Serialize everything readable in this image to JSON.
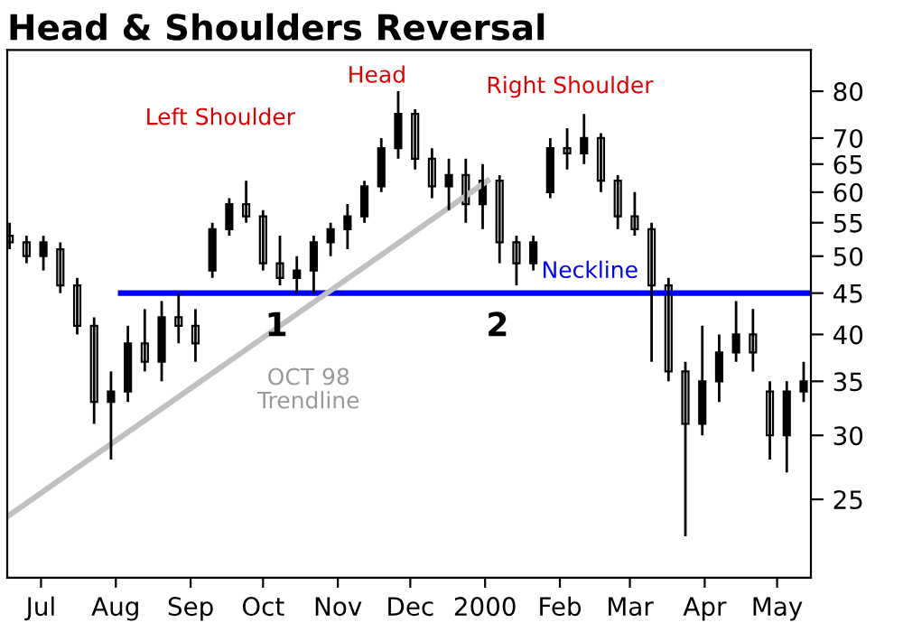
{
  "chart_data": {
    "type": "candlestick",
    "title": "Head & Shoulders Reversal",
    "x": [
      "1999-07-02",
      "1999-07-09",
      "1999-07-16",
      "1999-07-23",
      "1999-07-30",
      "1999-08-06",
      "1999-08-13",
      "1999-08-20",
      "1999-08-27",
      "1999-09-03",
      "1999-09-10",
      "1999-09-17",
      "1999-09-24",
      "1999-10-01",
      "1999-10-08",
      "1999-10-15",
      "1999-10-22",
      "1999-10-29",
      "1999-11-05",
      "1999-11-12",
      "1999-11-19",
      "1999-11-26",
      "1999-12-03",
      "1999-12-10",
      "1999-12-17",
      "1999-12-24",
      "1999-12-31",
      "2000-01-07",
      "2000-01-14",
      "2000-01-21",
      "2000-01-28",
      "2000-02-04",
      "2000-02-11",
      "2000-02-18",
      "2000-02-25",
      "2000-03-03",
      "2000-03-10",
      "2000-03-17",
      "2000-03-24",
      "2000-03-31",
      "2000-04-07",
      "2000-04-14",
      "2000-04-21",
      "2000-04-28",
      "2000-05-05",
      "2000-05-12",
      "2000-05-19",
      "2000-05-26"
    ],
    "ohlc": [
      [
        53,
        55,
        51,
        52
      ],
      [
        52,
        53,
        49,
        50
      ],
      [
        50,
        53,
        48,
        52
      ],
      [
        51,
        52,
        45,
        46
      ],
      [
        46,
        47,
        40,
        41
      ],
      [
        41,
        42,
        31,
        33
      ],
      [
        33,
        36,
        28,
        34
      ],
      [
        34,
        41,
        33,
        39
      ],
      [
        39,
        43,
        36,
        37
      ],
      [
        37,
        44,
        35,
        42
      ],
      [
        42,
        45,
        39,
        41
      ],
      [
        41,
        43,
        37,
        39
      ],
      [
        48,
        55,
        47,
        54
      ],
      [
        54,
        59,
        53,
        58
      ],
      [
        58,
        62,
        55,
        56
      ],
      [
        56,
        57,
        48,
        49
      ],
      [
        49,
        53,
        46,
        47
      ],
      [
        47,
        50,
        45,
        48
      ],
      [
        48,
        53,
        45,
        52
      ],
      [
        52,
        55,
        50,
        54
      ],
      [
        54,
        58,
        51,
        56
      ],
      [
        56,
        62,
        55,
        61
      ],
      [
        61,
        70,
        60,
        68
      ],
      [
        68,
        80,
        66,
        75
      ],
      [
        75,
        76,
        64,
        66
      ],
      [
        66,
        68,
        59,
        61
      ],
      [
        61,
        66,
        57,
        63
      ],
      [
        63,
        66,
        55,
        58
      ],
      [
        58,
        65,
        54,
        62
      ],
      [
        62,
        63,
        49,
        52
      ],
      [
        52,
        53,
        46,
        49
      ],
      [
        49,
        53,
        48,
        52
      ],
      [
        60,
        70,
        59,
        68
      ],
      [
        68,
        72,
        64,
        67
      ],
      [
        67,
        75,
        65,
        70
      ],
      [
        70,
        71,
        60,
        62
      ],
      [
        62,
        63,
        54,
        56
      ],
      [
        56,
        60,
        53,
        54
      ],
      [
        54,
        55,
        37,
        46
      ],
      [
        46,
        47,
        35,
        36
      ],
      [
        36,
        37,
        22.5,
        31
      ],
      [
        31,
        41,
        30,
        35
      ],
      [
        35,
        40,
        33,
        38
      ],
      [
        38,
        44,
        37,
        40
      ],
      [
        40,
        43,
        36,
        38
      ],
      [
        34,
        35,
        28,
        30
      ],
      [
        30,
        35,
        27,
        34
      ],
      [
        34,
        37,
        33,
        35
      ]
    ],
    "color": "#000000",
    "series": [
      {
        "type": "line",
        "color": "#0000ff",
        "x": [
          "1999-08-17",
          "2000-05-29"
        ],
        "values": [
          45,
          45
        ]
      },
      {
        "type": "line",
        "color": "#c0c0c0",
        "x": [
          "1999-07-01",
          "2000-01-16"
        ],
        "values": [
          23.8,
          62
        ]
      }
    ],
    "log": true,
    "ylim": [
      20,
      90
    ],
    "yticks": [
      25,
      30,
      35,
      40,
      45,
      50,
      55,
      60,
      65,
      70,
      80
    ],
    "xlim": [
      "1999-07-01",
      "2000-05-29"
    ],
    "xticks": [
      {
        "value": "1999-07-15",
        "label": "Jul"
      },
      {
        "value": "1999-08-15",
        "label": "Aug"
      },
      {
        "value": "1999-09-15",
        "label": "Sep"
      },
      {
        "value": "1999-10-15",
        "label": "Oct"
      },
      {
        "value": "1999-11-15",
        "label": "Nov"
      },
      {
        "value": "1999-12-15",
        "label": "Dec"
      },
      {
        "value": "2000-01-15",
        "label": "2000"
      },
      {
        "value": "2000-02-15",
        "label": "Feb"
      },
      {
        "value": "2000-03-15",
        "label": "Mar"
      },
      {
        "value": "2000-04-15",
        "label": "Apr"
      },
      {
        "value": "2000-05-15",
        "label": "May"
      }
    ],
    "grid": false,
    "legend": false,
    "annotations": [
      "Left Shoulder",
      "Head",
      "Right Shoulder",
      "1",
      "2",
      "Neckline",
      "OCT 98\nTrendline"
    ]
  }
}
